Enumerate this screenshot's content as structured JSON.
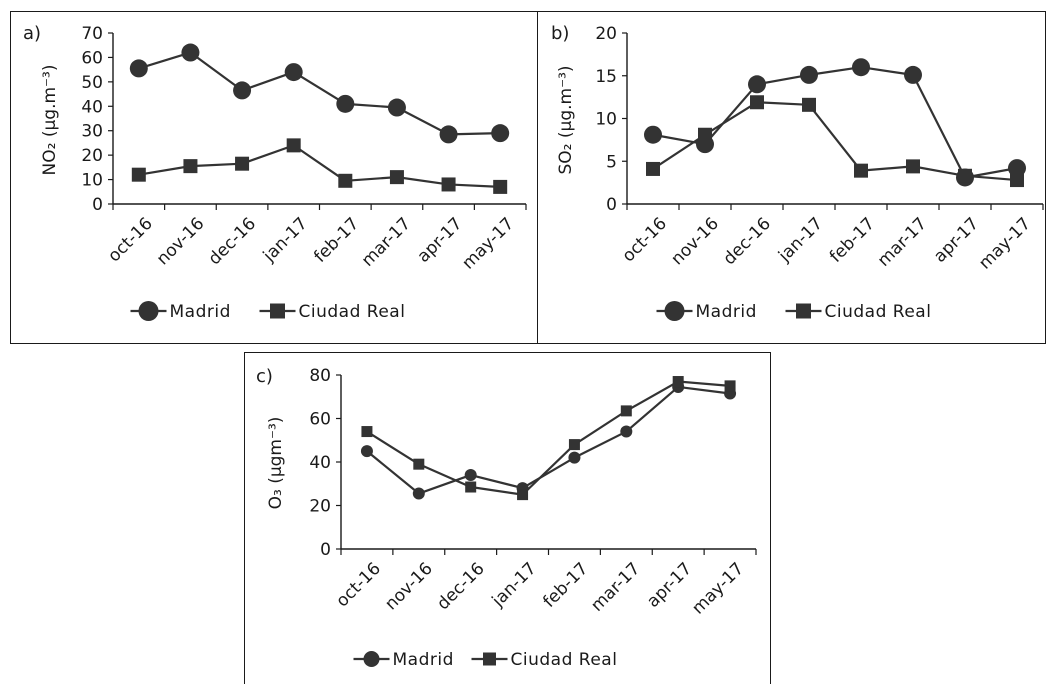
{
  "chart_data": [
    {
      "type": "line",
      "panel_label": "a)",
      "ylabel": "NO₂ (µg.m⁻³)",
      "categories": [
        "oct-16",
        "nov-16",
        "dec-16",
        "jan-17",
        "feb-17",
        "mar-17",
        "apr-17",
        "may-17"
      ],
      "ylim": [
        0,
        70
      ],
      "yticks": [
        "0",
        "10",
        "20",
        "30",
        "40",
        "50",
        "60",
        "70"
      ],
      "series": [
        {
          "name": "Madrid",
          "marker": "circle",
          "values": [
            55.5,
            62,
            46.5,
            54,
            41,
            39.5,
            28.5,
            29
          ]
        },
        {
          "name": "Ciudad Real",
          "marker": "square",
          "values": [
            12,
            15.5,
            16.5,
            24,
            9.5,
            11,
            8,
            7
          ]
        }
      ],
      "legend": "bottom",
      "grid": false
    },
    {
      "type": "line",
      "panel_label": "b)",
      "ylabel": "SO₂ (µg.m⁻³)",
      "categories": [
        "oct-16",
        "nov-16",
        "dec-16",
        "jan-17",
        "feb-17",
        "mar-17",
        "apr-17",
        "may-17"
      ],
      "ylim": [
        0,
        20
      ],
      "yticks": [
        "0",
        "5",
        "10",
        "15",
        "20"
      ],
      "series": [
        {
          "name": "Madrid",
          "marker": "circle",
          "values": [
            8.1,
            7.0,
            14.0,
            15.1,
            16.0,
            15.1,
            3.1,
            4.2
          ]
        },
        {
          "name": "Ciudad Real",
          "marker": "square",
          "values": [
            4.1,
            8.1,
            11.9,
            11.6,
            3.9,
            4.4,
            3.3,
            2.8
          ]
        }
      ],
      "legend": "bottom",
      "grid": false
    },
    {
      "type": "line",
      "panel_label": "c)",
      "ylabel": "O₃ (µgm⁻³)",
      "categories": [
        "oct-16",
        "nov-16",
        "dec-16",
        "jan-17",
        "feb-17",
        "mar-17",
        "apr-17",
        "may-17"
      ],
      "ylim": [
        0,
        80
      ],
      "yticks": [
        "0",
        "20",
        "40",
        "60",
        "80"
      ],
      "series": [
        {
          "name": "Madrid",
          "marker": "circle",
          "values": [
            45,
            25.5,
            34,
            28,
            42,
            54,
            74.5,
            71.5
          ]
        },
        {
          "name": "Ciudad Real",
          "marker": "square",
          "values": [
            54,
            39,
            28.5,
            25,
            48,
            63.5,
            77,
            75
          ]
        }
      ],
      "legend": "bottom",
      "grid": false
    }
  ]
}
